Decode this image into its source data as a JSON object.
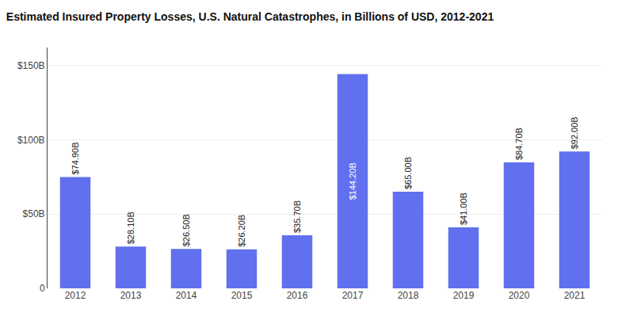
{
  "chart_data": {
    "type": "bar",
    "title": "Estimated Insured Property Losses, U.S. Natural Catastrophes, in Billions of USD, 2012-2021",
    "categories": [
      "2012",
      "2013",
      "2014",
      "2015",
      "2016",
      "2017",
      "2018",
      "2019",
      "2020",
      "2021"
    ],
    "values": [
      74.9,
      28.1,
      26.5,
      26.2,
      35.7,
      144.2,
      65.0,
      41.0,
      84.7,
      92.0
    ],
    "value_labels": [
      "$74.90B",
      "$28.10B",
      "$26.50B",
      "$26.20B",
      "$35.70B",
      "$144.20B",
      "$65.00B",
      "$41.00B",
      "$84.70B",
      "$92.00B"
    ],
    "data_labels": true,
    "color": "#6070ee",
    "ylim": [
      0,
      162
    ],
    "yticks": [
      0,
      {
        "value": 50,
        "label": "$50B"
      },
      {
        "value": 100,
        "label": "$100B"
      },
      {
        "value": 150,
        "label": "$150B"
      }
    ],
    "grid": true
  }
}
